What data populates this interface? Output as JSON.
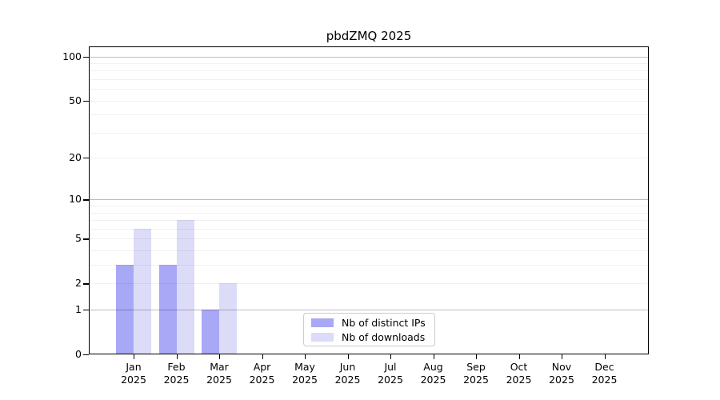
{
  "figure": {
    "background": "#ffffff",
    "frame_color": "#000000"
  },
  "chart_data": {
    "type": "bar",
    "title": "pbdZMQ 2025",
    "months": [
      "Jan",
      "Feb",
      "Mar",
      "Apr",
      "May",
      "Jun",
      "Jul",
      "Aug",
      "Sep",
      "Oct",
      "Nov",
      "Dec"
    ],
    "year": "2025",
    "series": [
      {
        "name": "Nb of distinct IPs",
        "color": "#a8a8f6",
        "values": [
          3,
          3,
          1,
          0,
          0,
          0,
          0,
          0,
          0,
          0,
          0,
          0
        ]
      },
      {
        "name": "Nb of downloads",
        "color": "#dcdcf8",
        "values": [
          6,
          7,
          2,
          0,
          0,
          0,
          0,
          0,
          0,
          0,
          0,
          0
        ]
      }
    ],
    "y_axis": {
      "scale": "log1p",
      "tick_values": [
        0,
        1,
        2,
        5,
        10,
        20,
        50,
        100
      ],
      "major_gridlines": [
        1,
        10,
        100
      ],
      "minor_gridlines": [
        2,
        3,
        4,
        5,
        6,
        7,
        8,
        9,
        20,
        30,
        40,
        50,
        60,
        70,
        80,
        90
      ],
      "ylim": [
        0,
        117
      ]
    },
    "grid": true,
    "legend": {
      "position": "lower center"
    }
  }
}
